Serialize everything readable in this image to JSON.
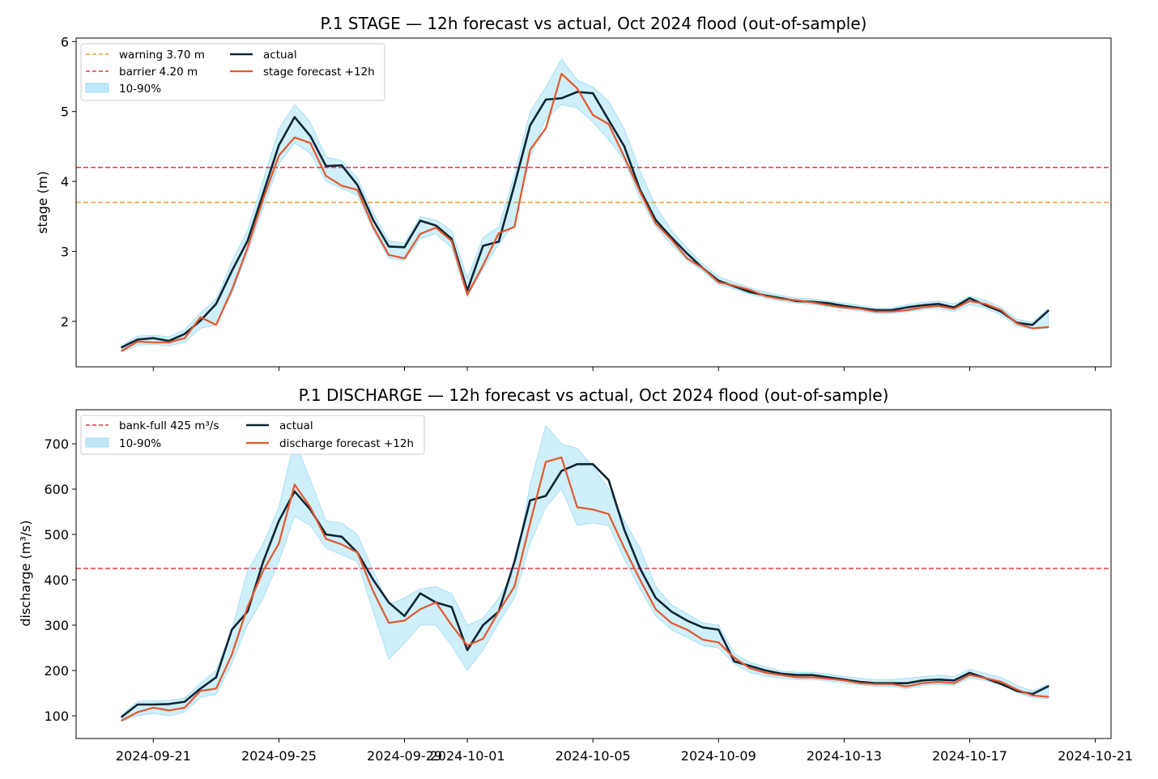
{
  "colors": {
    "actual": "#0d2535",
    "forecast": "#e2572b",
    "band": "#bfe9f8",
    "band_edge": "#9fdcf2",
    "warning": "#e0a52a",
    "barrier": "#e03a48"
  },
  "x_ticks": [
    "2024-09-21",
    "2024-09-25",
    "2024-09-29",
    "2024-10-01",
    "2024-10-05",
    "2024-10-09",
    "2024-10-13",
    "2024-10-17",
    "2024-10-21"
  ],
  "chart_data": [
    {
      "type": "line",
      "title": "P.1 STAGE — 12h forecast vs actual, Oct 2024 flood (out-of-sample)",
      "xlabel": "",
      "ylabel": "stage (m)",
      "xlim": [
        "2024-09-18T13:00",
        "2024-10-21T12:00"
      ],
      "ylim": [
        1.35,
        6.05
      ],
      "y_ticks": [
        "2",
        "3",
        "4",
        "5",
        "6"
      ],
      "grid": false,
      "legend_position": "top-left",
      "legend": [
        {
          "label": "warning 3.70 m",
          "kind": "dashed",
          "color_key": "warning"
        },
        {
          "label": "barrier 4.20 m",
          "kind": "dashed",
          "color_key": "barrier"
        },
        {
          "label": "10-90%",
          "kind": "band",
          "color_key": "band"
        },
        {
          "label": "actual",
          "kind": "line",
          "color_key": "actual"
        },
        {
          "label": "stage forecast +12h",
          "kind": "line",
          "color_key": "forecast"
        }
      ],
      "thresholds": [
        {
          "value": 3.7,
          "color_key": "warning"
        },
        {
          "value": 4.2,
          "color_key": "barrier"
        }
      ],
      "x": [
        "2024-09-20",
        "2024-09-20T12:00",
        "2024-09-21",
        "2024-09-21T12:00",
        "2024-09-22",
        "2024-09-22T12:00",
        "2024-09-23",
        "2024-09-23T12:00",
        "2024-09-24",
        "2024-09-24T12:00",
        "2024-09-25",
        "2024-09-25T12:00",
        "2024-09-26",
        "2024-09-26T12:00",
        "2024-09-27",
        "2024-09-27T12:00",
        "2024-09-28",
        "2024-09-28T12:00",
        "2024-09-29",
        "2024-09-29T12:00",
        "2024-09-30",
        "2024-09-30T12:00",
        "2024-10-01",
        "2024-10-01T12:00",
        "2024-10-02",
        "2024-10-02T12:00",
        "2024-10-03",
        "2024-10-03T12:00",
        "2024-10-04",
        "2024-10-04T12:00",
        "2024-10-05",
        "2024-10-05T12:00",
        "2024-10-06",
        "2024-10-06T12:00",
        "2024-10-07",
        "2024-10-07T12:00",
        "2024-10-08",
        "2024-10-08T12:00",
        "2024-10-09",
        "2024-10-09T12:00",
        "2024-10-10",
        "2024-10-10T12:00",
        "2024-10-11",
        "2024-10-11T12:00",
        "2024-10-12",
        "2024-10-12T12:00",
        "2024-10-13",
        "2024-10-13T12:00",
        "2024-10-14",
        "2024-10-14T12:00",
        "2024-10-15",
        "2024-10-15T12:00",
        "2024-10-16",
        "2024-10-16T12:00",
        "2024-10-17",
        "2024-10-17T12:00",
        "2024-10-18",
        "2024-10-18T12:00",
        "2024-10-19",
        "2024-10-19T12:00"
      ],
      "series": [
        {
          "name": "actual",
          "color_key": "actual",
          "width": 2.6,
          "values": [
            1.63,
            1.74,
            1.76,
            1.72,
            1.82,
            2.01,
            2.25,
            2.72,
            3.15,
            3.83,
            4.52,
            4.92,
            4.65,
            4.22,
            4.23,
            3.95,
            3.45,
            3.07,
            3.06,
            3.44,
            3.37,
            3.18,
            2.44,
            3.08,
            3.14,
            3.95,
            4.8,
            5.17,
            5.19,
            5.28,
            5.26,
            4.88,
            4.5,
            3.88,
            3.45,
            3.2,
            2.97,
            2.76,
            2.58,
            2.5,
            2.42,
            2.37,
            2.33,
            2.29,
            2.28,
            2.26,
            2.22,
            2.19,
            2.16,
            2.16,
            2.2,
            2.23,
            2.25,
            2.2,
            2.33,
            2.23,
            2.14,
            1.98,
            1.95,
            2.15
          ]
        },
        {
          "name": "stage forecast +12h",
          "color_key": "forecast",
          "width": 2.2,
          "values": [
            1.58,
            1.71,
            1.7,
            1.7,
            1.76,
            2.06,
            1.95,
            2.45,
            3.05,
            3.75,
            4.37,
            4.63,
            4.55,
            4.08,
            3.94,
            3.88,
            3.35,
            2.95,
            2.9,
            3.25,
            3.34,
            3.15,
            2.38,
            2.8,
            3.26,
            3.35,
            4.45,
            4.76,
            5.54,
            5.33,
            4.95,
            4.82,
            4.35,
            3.85,
            3.4,
            3.17,
            2.9,
            2.76,
            2.56,
            2.51,
            2.45,
            2.36,
            2.32,
            2.3,
            2.27,
            2.23,
            2.2,
            2.18,
            2.14,
            2.14,
            2.16,
            2.2,
            2.22,
            2.18,
            2.29,
            2.25,
            2.16,
            1.97,
            1.9,
            1.92
          ]
        },
        {
          "name": "10-90% low",
          "color_key": "band",
          "role": "band_low",
          "values": [
            1.56,
            1.66,
            1.67,
            1.65,
            1.7,
            1.9,
            1.95,
            2.4,
            2.98,
            3.62,
            4.25,
            4.55,
            4.4,
            4.0,
            3.9,
            3.8,
            3.3,
            2.9,
            2.87,
            3.18,
            3.25,
            3.05,
            2.35,
            2.75,
            3.1,
            3.4,
            4.35,
            4.9,
            5.1,
            5.05,
            4.85,
            4.6,
            4.3,
            3.75,
            3.35,
            3.1,
            2.87,
            2.72,
            2.53,
            2.46,
            2.39,
            2.33,
            2.29,
            2.26,
            2.24,
            2.21,
            2.18,
            2.15,
            2.11,
            2.11,
            2.14,
            2.17,
            2.19,
            2.14,
            2.24,
            2.19,
            2.09,
            1.93,
            1.89,
            1.9
          ]
        },
        {
          "name": "10-90% high",
          "color_key": "band",
          "role": "band_high",
          "values": [
            1.66,
            1.79,
            1.8,
            1.78,
            1.88,
            2.12,
            2.32,
            2.85,
            3.3,
            4.02,
            4.75,
            5.1,
            4.85,
            4.35,
            4.3,
            4.05,
            3.55,
            3.15,
            3.12,
            3.5,
            3.45,
            3.3,
            2.62,
            3.2,
            3.35,
            4.1,
            5.0,
            5.35,
            5.75,
            5.45,
            5.35,
            5.15,
            4.75,
            4.15,
            3.65,
            3.3,
            3.05,
            2.82,
            2.64,
            2.56,
            2.48,
            2.42,
            2.37,
            2.33,
            2.32,
            2.29,
            2.26,
            2.23,
            2.19,
            2.19,
            2.24,
            2.27,
            2.29,
            2.25,
            2.36,
            2.3,
            2.2,
            2.03,
            1.99,
            2.18
          ]
        }
      ]
    },
    {
      "type": "line",
      "title": "P.1 DISCHARGE — 12h forecast vs actual, Oct 2024 flood (out-of-sample)",
      "xlabel": "",
      "ylabel": "discharge (m³/s)",
      "xlim": [
        "2024-09-18T13:00",
        "2024-10-21T12:00"
      ],
      "ylim": [
        50,
        775
      ],
      "y_ticks": [
        "100",
        "200",
        "300",
        "400",
        "500",
        "600",
        "700"
      ],
      "grid": false,
      "legend_position": "top-left",
      "legend": [
        {
          "label": "bank-full 425 m³/s",
          "kind": "dashed",
          "color_key": "barrier"
        },
        {
          "label": "10-90%",
          "kind": "band",
          "color_key": "band"
        },
        {
          "label": "actual",
          "kind": "line",
          "color_key": "actual"
        },
        {
          "label": "discharge forecast +12h",
          "kind": "line",
          "color_key": "forecast"
        }
      ],
      "thresholds": [
        {
          "value": 425,
          "color_key": "barrier"
        }
      ],
      "x": [
        "2024-09-20",
        "2024-09-20T12:00",
        "2024-09-21",
        "2024-09-21T12:00",
        "2024-09-22",
        "2024-09-22T12:00",
        "2024-09-23",
        "2024-09-23T12:00",
        "2024-09-24",
        "2024-09-24T12:00",
        "2024-09-25",
        "2024-09-25T12:00",
        "2024-09-26",
        "2024-09-26T12:00",
        "2024-09-27",
        "2024-09-27T12:00",
        "2024-09-28",
        "2024-09-28T12:00",
        "2024-09-29",
        "2024-09-29T12:00",
        "2024-09-30",
        "2024-09-30T12:00",
        "2024-10-01",
        "2024-10-01T12:00",
        "2024-10-02",
        "2024-10-02T12:00",
        "2024-10-03",
        "2024-10-03T12:00",
        "2024-10-04",
        "2024-10-04T12:00",
        "2024-10-05",
        "2024-10-05T12:00",
        "2024-10-06",
        "2024-10-06T12:00",
        "2024-10-07",
        "2024-10-07T12:00",
        "2024-10-08",
        "2024-10-08T12:00",
        "2024-10-09",
        "2024-10-09T12:00",
        "2024-10-10",
        "2024-10-10T12:00",
        "2024-10-11",
        "2024-10-11T12:00",
        "2024-10-12",
        "2024-10-12T12:00",
        "2024-10-13",
        "2024-10-13T12:00",
        "2024-10-14",
        "2024-10-14T12:00",
        "2024-10-15",
        "2024-10-15T12:00",
        "2024-10-16",
        "2024-10-16T12:00",
        "2024-10-17",
        "2024-10-17T12:00",
        "2024-10-18",
        "2024-10-18T12:00",
        "2024-10-19",
        "2024-10-19T12:00"
      ],
      "series": [
        {
          "name": "actual",
          "color_key": "actual",
          "width": 2.6,
          "values": [
            98,
            125,
            125,
            126,
            131,
            160,
            185,
            290,
            330,
            440,
            530,
            595,
            555,
            500,
            495,
            460,
            400,
            350,
            320,
            370,
            350,
            340,
            245,
            300,
            330,
            440,
            575,
            585,
            640,
            655,
            655,
            620,
            510,
            425,
            360,
            330,
            310,
            295,
            290,
            220,
            210,
            200,
            193,
            190,
            190,
            185,
            180,
            175,
            172,
            172,
            172,
            178,
            180,
            178,
            195,
            183,
            170,
            155,
            148,
            165
          ]
        },
        {
          "name": "discharge forecast +12h",
          "color_key": "forecast",
          "width": 2.2,
          "values": [
            90,
            108,
            118,
            112,
            118,
            155,
            160,
            235,
            340,
            420,
            480,
            610,
            560,
            490,
            478,
            460,
            375,
            305,
            310,
            335,
            350,
            300,
            255,
            270,
            330,
            385,
            525,
            660,
            670,
            560,
            555,
            545,
            470,
            400,
            335,
            305,
            290,
            268,
            262,
            228,
            205,
            195,
            190,
            185,
            185,
            182,
            178,
            172,
            170,
            170,
            165,
            172,
            175,
            172,
            190,
            183,
            175,
            158,
            145,
            142
          ]
        },
        {
          "name": "10-90% low",
          "color_key": "band",
          "role": "band_low",
          "values": [
            88,
            100,
            105,
            100,
            108,
            140,
            148,
            215,
            300,
            360,
            440,
            540,
            520,
            470,
            455,
            440,
            330,
            225,
            260,
            300,
            300,
            255,
            200,
            245,
            305,
            360,
            480,
            560,
            600,
            520,
            525,
            520,
            445,
            380,
            320,
            290,
            273,
            255,
            250,
            215,
            195,
            188,
            183,
            180,
            180,
            177,
            172,
            168,
            165,
            165,
            160,
            167,
            170,
            167,
            183,
            178,
            170,
            152,
            140,
            138
          ]
        },
        {
          "name": "10-90% high",
          "color_key": "band",
          "role": "band_high",
          "values": [
            103,
            132,
            133,
            134,
            139,
            172,
            200,
            290,
            420,
            480,
            560,
            710,
            620,
            530,
            525,
            500,
            420,
            345,
            360,
            380,
            385,
            370,
            300,
            315,
            360,
            420,
            610,
            740,
            700,
            690,
            650,
            600,
            530,
            470,
            385,
            345,
            325,
            305,
            300,
            238,
            218,
            208,
            199,
            196,
            196,
            192,
            187,
            183,
            180,
            180,
            183,
            186,
            190,
            186,
            203,
            193,
            185,
            167,
            155,
            170
          ]
        }
      ]
    }
  ]
}
